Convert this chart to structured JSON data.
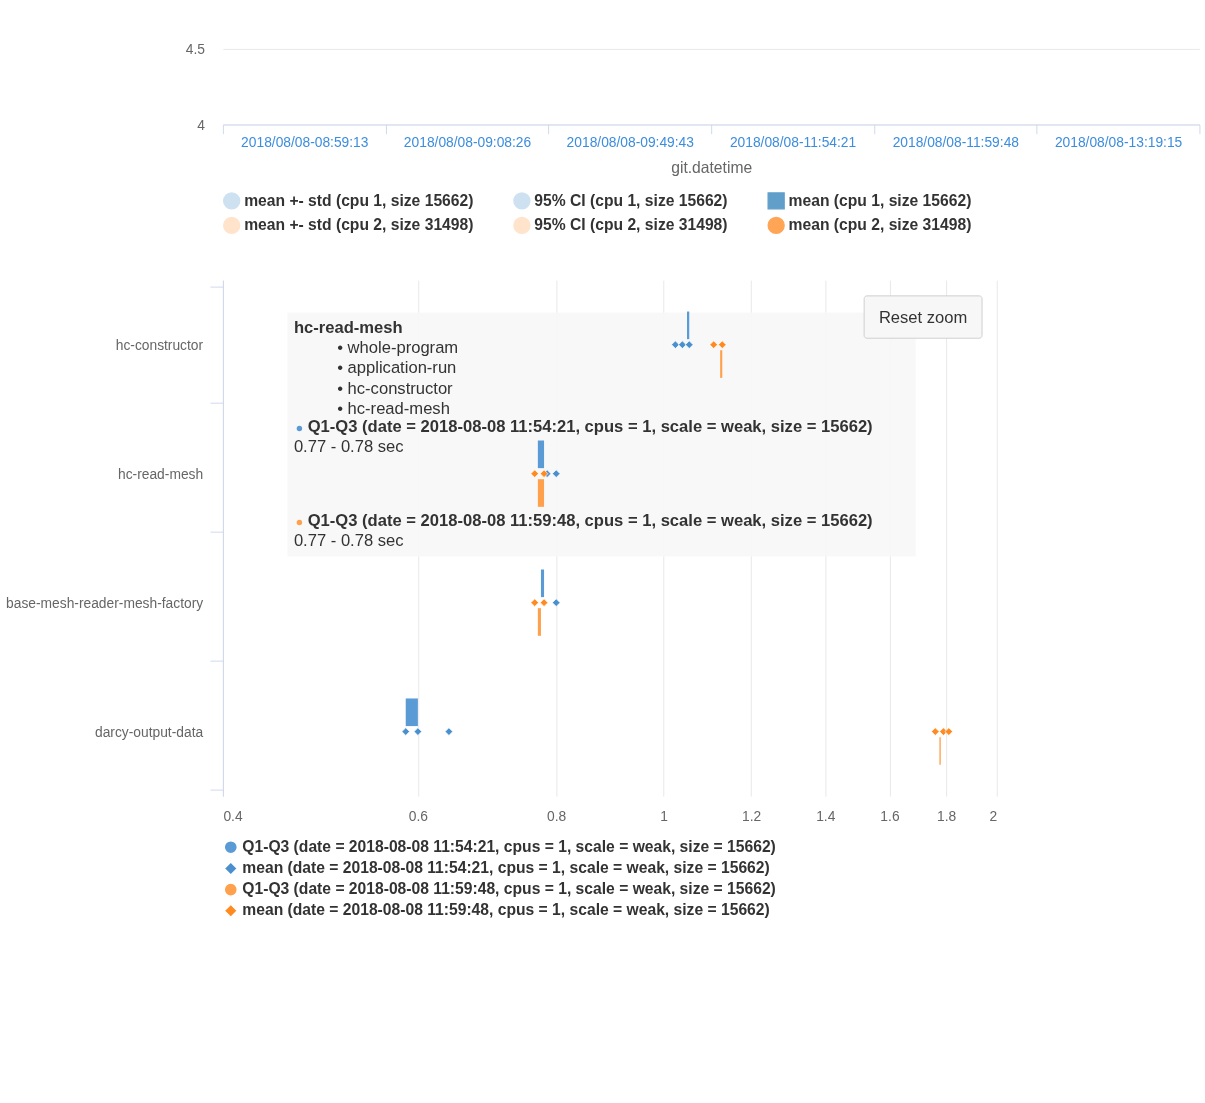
{
  "chart_data": [
    {
      "type": "line",
      "xlabel": "git.datetime",
      "categories": [
        "2018/08/08-08:59:13",
        "2018/08/08-09:08:26",
        "2018/08/08-09:49:43",
        "2018/08/08-11:54:21",
        "2018/08/08-11:59:48",
        "2018/08/08-13:19:15"
      ],
      "ylim": [
        4,
        4.5
      ],
      "yticks": [
        4,
        4.5
      ],
      "grid": "y",
      "legend": "bottom",
      "series": [
        {
          "name": "mean +- std (cpu 1, size 15662)",
          "type": "area",
          "color": "#b9d5ec",
          "values": [
            null,
            null,
            null,
            null,
            null,
            null
          ]
        },
        {
          "name": "95% CI (cpu 1, size 15662)",
          "type": "area",
          "color": "#b9d5ec",
          "values": [
            null,
            null,
            null,
            null,
            null,
            null
          ]
        },
        {
          "name": "mean (cpu 1, size 15662)",
          "type": "line",
          "marker": "square",
          "color": "#1f77b4",
          "values": [
            null,
            null,
            null,
            null,
            null,
            null
          ]
        },
        {
          "name": "mean +- std (cpu 2, size 31498)",
          "type": "area",
          "color": "#ffd8b6",
          "values": [
            null,
            null,
            null,
            null,
            null,
            null
          ]
        },
        {
          "name": "95% CI (cpu 2, size 31498)",
          "type": "area",
          "color": "#ffd8b6",
          "values": [
            null,
            null,
            null,
            null,
            null,
            null
          ]
        },
        {
          "name": "mean (cpu 2, size 31498)",
          "type": "line",
          "marker": "circle",
          "color": "#ff7f0e",
          "values": [
            null,
            null,
            null,
            null,
            null,
            null
          ]
        }
      ]
    },
    {
      "type": "bar",
      "orientation": "horizontal",
      "log": "x",
      "grid": "x",
      "legend": "bottom",
      "categories": [
        "hc-constructor",
        "hc-read-mesh",
        "base-mesh-reader-mesh-factory",
        "darcy-output-data"
      ],
      "xlim": [
        0.4,
        2
      ],
      "xticks": [
        0.4,
        0.6,
        0.8,
        1,
        1.2,
        1.4,
        1.6,
        1.8,
        2
      ],
      "series": [
        {
          "name": "Q1-Q3 (date = 2018-08-08 11:54:21, cpus = 1, scale = weak, size = 15662)",
          "type": "bar",
          "color": "#5b9bd5",
          "base": [
            1.05,
            0.77,
            0.775,
            0.585
          ],
          "values": [
            0.005,
            0.01,
            0.005,
            0.015
          ]
        },
        {
          "name": "mean (date = 2018-08-08 11:54:21, cpus = 1, scale = weak, size = 15662)",
          "type": "scatter",
          "marker": "diamond",
          "color": "#4a8fce",
          "x": [
            "hc-constructor",
            "hc-constructor",
            "hc-constructor",
            "hc-read-mesh",
            "hc-read-mesh",
            "base-mesh-reader-mesh-factory",
            "base-mesh-reader-mesh-factory",
            "darcy-output-data",
            "darcy-output-data",
            "darcy-output-data"
          ],
          "values": [
            1.025,
            1.04,
            1.055,
            0.785,
            0.8,
            null,
            0.8,
            0.585,
            0.6,
            0.64
          ]
        },
        {
          "name": "Q1-Q3 (date = 2018-08-08 11:59:48, cpus = 1, scale = weak, size = 15662)",
          "type": "bar",
          "color": "#ffa04d",
          "base": [
            1.125,
            0.77,
            0.77,
            1.775
          ],
          "values": [
            0.005,
            0.01,
            0.005,
            0.005
          ]
        },
        {
          "name": "mean (date = 2018-08-08 11:59:48, cpus = 1, scale = weak, size = 15662)",
          "type": "scatter",
          "marker": "diamond",
          "color": "#ff8a1f",
          "x": [
            "hc-constructor",
            "hc-constructor",
            "hc-read-mesh",
            "hc-read-mesh",
            "base-mesh-reader-mesh-factory",
            "base-mesh-reader-mesh-factory",
            "darcy-output-data",
            "darcy-output-data",
            "darcy-output-data"
          ],
          "values": [
            1.11,
            1.13,
            0.765,
            0.78,
            0.765,
            0.78,
            1.76,
            1.79,
            1.81
          ]
        }
      ],
      "annotations": [
        "hc-read-mesh",
        "• whole-program",
        "• application-run",
        "• hc-constructor",
        "• hc-read-mesh",
        "Q1-Q3 (date = 2018-08-08 11:54:21, cpus = 1, scale = weak, size = 15662)",
        "0.77 - 0.78 sec",
        "Q1-Q3 (date = 2018-08-08 11:59:48, cpus = 1, scale = weak, size = 15662)",
        "0.77 - 0.78 sec",
        "Reset zoom"
      ]
    }
  ]
}
